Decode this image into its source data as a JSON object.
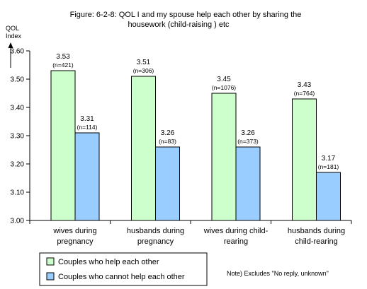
{
  "chart_data": {
    "type": "bar",
    "title_line1": "Figure: 6-2-8:  QOL  I and my spouse help each other by sharing the",
    "title_line2": "housework (child-raising ) etc",
    "ylabel_line1": "QOL",
    "ylabel_line2": "Index",
    "ylim": [
      3.0,
      3.6
    ],
    "yticks": [
      "3.00",
      "3.10",
      "3.20",
      "3.30",
      "3.40",
      "3.50",
      "3.60"
    ],
    "grid": false,
    "categories": [
      [
        "wives during",
        "pregnancy"
      ],
      [
        "husbands during",
        "pregnancy"
      ],
      [
        "wives during child-",
        "rearing"
      ],
      [
        "husbands during",
        "child-rearing"
      ]
    ],
    "series": [
      {
        "name": "Couples who help each other",
        "color": "#ccffcc",
        "values": [
          3.53,
          3.51,
          3.45,
          3.43
        ],
        "value_labels": [
          "3.53",
          "3.51",
          "3.45",
          "3.43"
        ],
        "n_labels": [
          "(n=421)",
          "(n=306)",
          "(n=1076)",
          "(n=764)"
        ]
      },
      {
        "name": "Couples who cannot help each other",
        "color": "#99ccff",
        "values": [
          3.31,
          3.26,
          3.26,
          3.17
        ],
        "value_labels": [
          "3.31",
          "3.26",
          "3.26",
          "3.17"
        ],
        "n_labels": [
          "(n=114)",
          "(n=83)",
          "(n=373)",
          "(n=181)"
        ]
      }
    ],
    "legend_position": "bottom-left",
    "note": "Note) Excludes \"No reply, unknown\"",
    "note_color": "#ff0000"
  }
}
